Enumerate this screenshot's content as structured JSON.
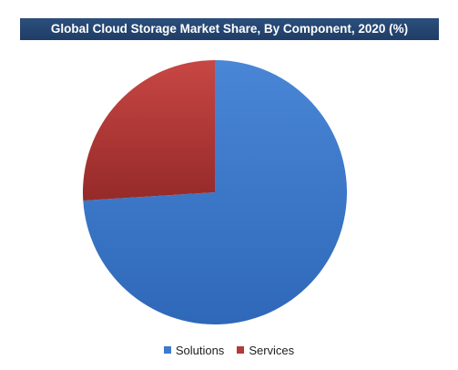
{
  "chart_data": {
    "type": "pie",
    "title": "Global Cloud Storage Market Share, By Component, 2020 (%)",
    "categories": [
      "Solutions",
      "Services"
    ],
    "values": [
      74,
      26
    ],
    "colors": [
      "#3d7acb",
      "#b23a38"
    ],
    "legend_position": "bottom"
  }
}
